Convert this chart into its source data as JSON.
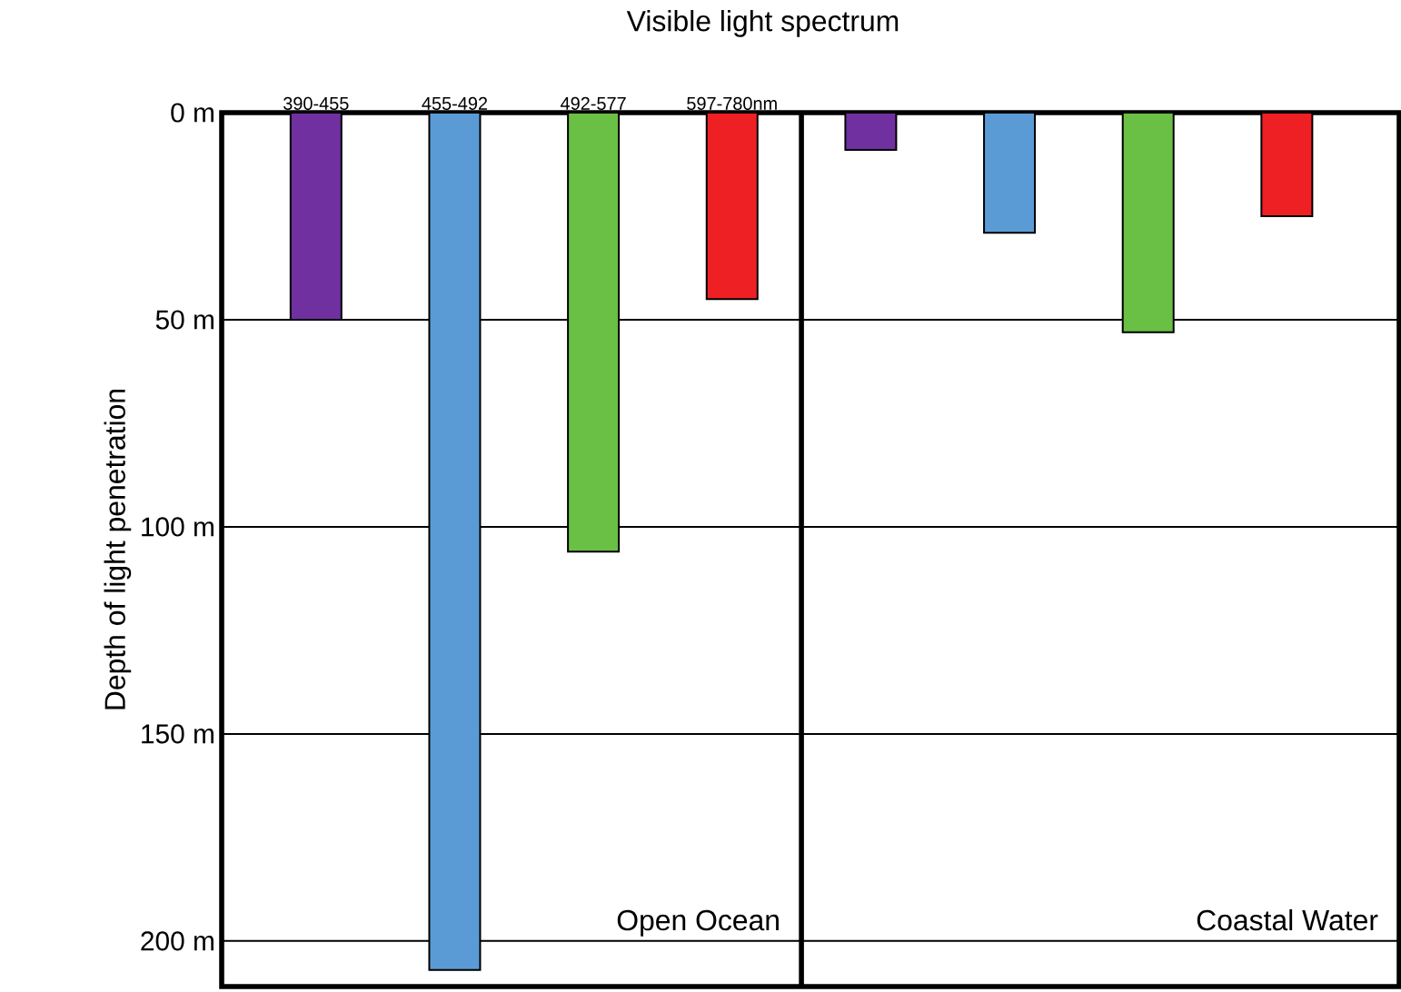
{
  "chart_data": {
    "type": "bar",
    "title": "Visible light spectrum",
    "ylabel": "Depth of light penetration",
    "categories": [
      "390-455",
      "455-492",
      "492-577",
      "597-780nm",
      null,
      null,
      null,
      null
    ],
    "values": [
      50,
      207,
      106,
      45,
      9,
      29,
      53,
      25
    ],
    "colors": [
      "#7030a0",
      "#5b9bd5",
      "#6abf45",
      "#ee2024",
      "#7030a0",
      "#5b9bd5",
      "#6abf45",
      "#ee2024"
    ],
    "ylim": [
      211,
      0
    ],
    "yticks": [
      {
        "value": 0,
        "label": "0 m"
      },
      {
        "value": 50,
        "label": "50 m"
      },
      {
        "value": 100,
        "label": "100 m"
      },
      {
        "value": 150,
        "label": "150 m"
      },
      {
        "value": 200,
        "label": "200 m"
      }
    ],
    "grid": "y",
    "annotations": [
      "Open Ocean",
      "Coastal Water"
    ]
  }
}
